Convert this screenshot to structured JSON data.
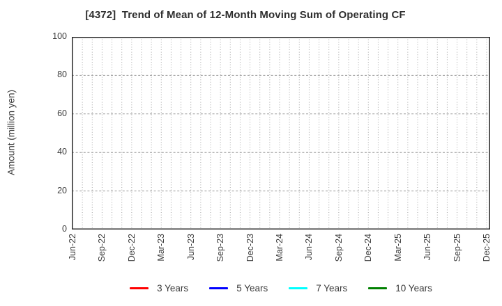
{
  "figure": {
    "title": "[4372]  Trend of Mean of 12-Month Moving Sum of Operating CF"
  },
  "chart_data": {
    "type": "line",
    "title": "[4372]  Trend of Mean of 12-Month Moving Sum of Operating CF",
    "xlabel": "",
    "ylabel": "Amount (million yen)",
    "ylim": [
      0,
      100
    ],
    "yticks": [
      0,
      20,
      40,
      60,
      80,
      100
    ],
    "x_tick_labels": [
      "Jun-22",
      "Sep-22",
      "Dec-22",
      "Mar-23",
      "Jun-23",
      "Sep-23",
      "Dec-23",
      "Mar-24",
      "Jun-24",
      "Sep-24",
      "Dec-24",
      "Mar-25",
      "Jun-25",
      "Sep-25",
      "Dec-25"
    ],
    "months_per_labeled_tick": 3,
    "n_minor_ticks": 43,
    "grid": true,
    "legend_position": "bottom",
    "series": [
      {
        "name": "3 Years",
        "color": "#ff0000",
        "values": []
      },
      {
        "name": "5 Years",
        "color": "#0000ff",
        "values": []
      },
      {
        "name": "7 Years",
        "color": "#00ffff",
        "values": []
      },
      {
        "name": "10 Years",
        "color": "#008000",
        "values": []
      }
    ],
    "colors": {
      "axis_border": "#2a2a2a",
      "grid_vertical": "#a6a6a6",
      "grid_horizontal": "#9a9a9a",
      "text": "#3c3c3c"
    }
  }
}
